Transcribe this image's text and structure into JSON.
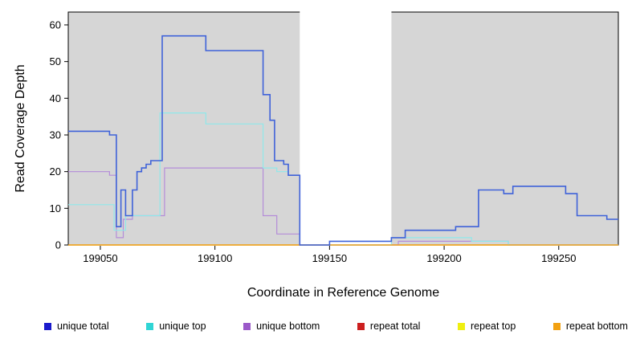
{
  "chart_data": {
    "type": "line",
    "title": "",
    "xlabel": "Coordinate in Reference Genome",
    "ylabel": "Read Coverage Depth",
    "xlim": [
      199036,
      199276
    ],
    "ylim": [
      0,
      63.5
    ],
    "x_ticks": [
      199050,
      199100,
      199150,
      199200,
      199250
    ],
    "y_ticks": [
      0,
      10,
      20,
      30,
      40,
      50,
      60
    ],
    "plot_bg_color": "#d6d6d6",
    "border_color": "#000000",
    "gap_region": {
      "start": 199137,
      "end": 199177,
      "color": "#ffffff"
    },
    "series": [
      {
        "name": "unique total",
        "legend_color": "#1a1acc",
        "line_color": "#3f62d9",
        "line_width": 1.6,
        "z": 6,
        "steps": [
          [
            199036,
            31
          ],
          [
            199054,
            30
          ],
          [
            199057,
            5
          ],
          [
            199059,
            15
          ],
          [
            199061,
            8
          ],
          [
            199064,
            15
          ],
          [
            199066,
            20
          ],
          [
            199068,
            21
          ],
          [
            199070,
            22
          ],
          [
            199072,
            23
          ],
          [
            199077,
            57
          ],
          [
            199096,
            53
          ],
          [
            199121,
            41
          ],
          [
            199124,
            34
          ],
          [
            199126,
            23
          ],
          [
            199130,
            22
          ],
          [
            199132,
            19
          ],
          [
            199137,
            0
          ],
          [
            199150,
            1
          ],
          [
            199177,
            2
          ],
          [
            199183,
            4
          ],
          [
            199205,
            5
          ],
          [
            199215,
            15
          ],
          [
            199226,
            14
          ],
          [
            199230,
            16
          ],
          [
            199253,
            14
          ],
          [
            199258,
            8
          ],
          [
            199271,
            7
          ]
        ]
      },
      {
        "name": "unique top",
        "legend_color": "#30d5d5",
        "line_color": "#8fe8ea",
        "line_width": 1.2,
        "z": 4,
        "steps": [
          [
            199036,
            11
          ],
          [
            199056,
            4
          ],
          [
            199061,
            8
          ],
          [
            199076,
            36
          ],
          [
            199096,
            33
          ],
          [
            199121,
            21
          ],
          [
            199127,
            20
          ],
          [
            199132,
            19
          ],
          [
            199137,
            0
          ],
          [
            199177,
            2
          ],
          [
            199212,
            1
          ],
          [
            199228,
            0
          ]
        ]
      },
      {
        "name": "unique bottom",
        "legend_color": "#9b59c9",
        "line_color": "#b48cd9",
        "line_width": 1.2,
        "z": 3,
        "steps": [
          [
            199036,
            20
          ],
          [
            199054,
            19
          ],
          [
            199057,
            2
          ],
          [
            199060,
            7
          ],
          [
            199064,
            8
          ],
          [
            199078,
            21
          ],
          [
            199121,
            8
          ],
          [
            199127,
            3
          ],
          [
            199137,
            0
          ],
          [
            199180,
            1
          ],
          [
            199228,
            0
          ]
        ]
      },
      {
        "name": "repeat total",
        "legend_color": "#cc1f1f",
        "line_color": "#cc1f1f",
        "line_width": 1.2,
        "z": 1,
        "steps": [
          [
            199036,
            0
          ]
        ]
      },
      {
        "name": "repeat top",
        "legend_color": "#efef10",
        "line_color": "#efef10",
        "line_width": 1.2,
        "z": 2,
        "steps": [
          [
            199036,
            0
          ]
        ]
      },
      {
        "name": "repeat bottom",
        "legend_color": "#f2a112",
        "line_color": "#f2a112",
        "line_width": 1.2,
        "z": 5,
        "steps": [
          [
            199036,
            0
          ]
        ]
      }
    ]
  }
}
